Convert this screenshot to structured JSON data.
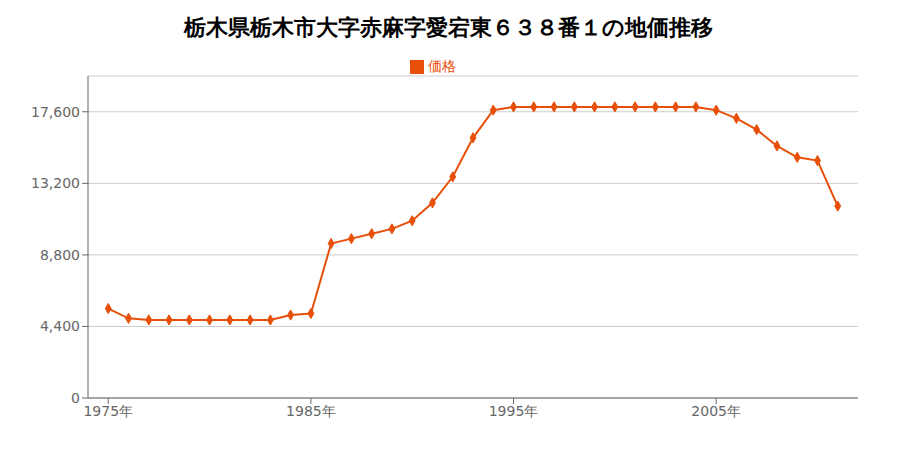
{
  "chart_data": {
    "type": "line",
    "title": "栃木県栃木市大字赤麻字愛宕東６３８番１の地価推移",
    "x": [
      1975,
      1976,
      1977,
      1978,
      1979,
      1980,
      1981,
      1982,
      1983,
      1984,
      1985,
      1986,
      1987,
      1988,
      1989,
      1990,
      1991,
      1992,
      1993,
      1994,
      1995,
      1996,
      1997,
      1998,
      1999,
      2000,
      2001,
      2002,
      2003,
      2004,
      2005,
      2006,
      2007,
      2008,
      2009,
      2010,
      2011
    ],
    "series": [
      {
        "name": "価格",
        "color": "#e8500a",
        "marker": "diamond",
        "values": [
          5500,
          4900,
          4800,
          4800,
          4800,
          4800,
          4800,
          4800,
          4800,
          5100,
          5200,
          9500,
          9800,
          10100,
          10400,
          10900,
          12000,
          13600,
          16000,
          17700,
          17900,
          17900,
          17900,
          17900,
          17900,
          17900,
          17900,
          17900,
          17900,
          17900,
          17700,
          17200,
          16500,
          15500,
          14800,
          14600,
          11800
        ]
      }
    ],
    "xlim": [
      1974,
      2012
    ],
    "xticks": [
      {
        "value": 1975,
        "label": "1975年"
      },
      {
        "value": 1985,
        "label": "1985年"
      },
      {
        "value": 1995,
        "label": "1995年"
      },
      {
        "value": 2005,
        "label": "2005年"
      }
    ],
    "ylim": [
      0,
      19800
    ],
    "yticks": [
      0,
      {
        "value": 4400,
        "label": "4,400"
      },
      {
        "value": 8800,
        "label": "8,800"
      },
      {
        "value": 13200,
        "label": "13,200"
      },
      {
        "value": 17600,
        "label": "17,600"
      }
    ],
    "grid": "y",
    "legend": "top"
  }
}
